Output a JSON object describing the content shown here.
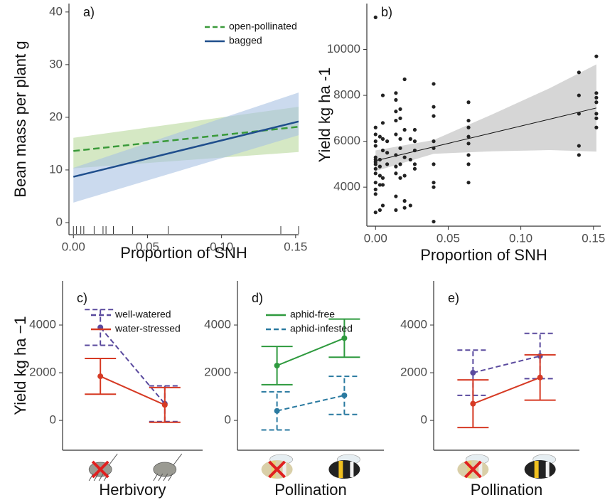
{
  "chart_data": [
    {
      "type": "line",
      "title": "a)",
      "xlabel": "Proportion of SNH",
      "ylabel": "Bean mass per plant g",
      "xlim": [
        -0.003,
        0.152
      ],
      "ylim": [
        -2.3,
        41.6
      ],
      "xticks": [
        {
          "value": 0,
          "label": "0.00"
        },
        0.05,
        {
          "value": 0.1,
          "label": "0.10"
        },
        0.15
      ],
      "yticks": [
        0,
        10,
        20,
        30,
        40
      ],
      "legend": "top-right",
      "series": [
        {
          "name": "open-pollinated",
          "color": "#3a9a3a",
          "dash": true,
          "band_color": "#b9d99c",
          "x": [
            0,
            0.152
          ],
          "values": [
            13.6,
            18.2
          ],
          "lower": [
            10.3,
            13.4
          ],
          "upper": [
            16.1,
            22.0
          ]
        },
        {
          "name": "bagged",
          "color": "#1f4e8c",
          "dash": false,
          "band_color": "#a9c2e2",
          "x": [
            0,
            0.152
          ],
          "values": [
            8.7,
            19.2
          ],
          "lower": [
            3.8,
            16.6
          ],
          "upper": [
            10.4,
            24.7
          ]
        }
      ],
      "rug": [
        0,
        0.002,
        0.005,
        0.007,
        0.014,
        0.02,
        0.022,
        0.027,
        0.04,
        0.064,
        0.14,
        0.152
      ]
    },
    {
      "type": "scatter",
      "title": "b)",
      "xlabel": "Proportion of SNH",
      "ylabel": "Yield kg ha -1",
      "xlim": [
        -0.006,
        0.155
      ],
      "ylim": [
        2300,
        12000
      ],
      "xticks": [
        {
          "value": 0,
          "label": "0.00"
        },
        0.05,
        {
          "value": 0.1,
          "label": "0.10"
        },
        0.15
      ],
      "yticks": [
        4000,
        6000,
        8000,
        10000
      ],
      "color": "#222",
      "x": [
        0,
        0,
        0,
        0,
        0,
        0,
        0,
        0,
        0,
        0,
        0,
        0,
        0,
        0,
        0,
        0.003,
        0.003,
        0.003,
        0.003,
        0.003,
        0.003,
        0.005,
        0.005,
        0.005,
        0.005,
        0.005,
        0.005,
        0.005,
        0.008,
        0.008,
        0.008,
        0.014,
        0.014,
        0.014,
        0.014,
        0.014,
        0.014,
        0.014,
        0.014,
        0.014,
        0.014,
        0.017,
        0.017,
        0.017,
        0.017,
        0.017,
        0.017,
        0.02,
        0.02,
        0.02,
        0.02,
        0.02,
        0.02,
        0.024,
        0.024,
        0.024,
        0.027,
        0.027,
        0.027,
        0.027,
        0.027,
        0.04,
        0.04,
        0.04,
        0.04,
        0.04,
        0.04,
        0.04,
        0.04,
        0.04,
        0.064,
        0.064,
        0.064,
        0.064,
        0.064,
        0.064,
        0.064,
        0.064,
        0.14,
        0.14,
        0.14,
        0.14,
        0.14,
        0.152,
        0.152,
        0.152,
        0.152,
        0.152,
        0.152,
        0.152
      ],
      "values": [
        11400,
        6600,
        6300,
        6000,
        5800,
        5300,
        5200,
        5100,
        5000,
        4800,
        4600,
        4200,
        3900,
        3700,
        2900,
        6200,
        5200,
        4900,
        4500,
        4100,
        3000,
        8000,
        6800,
        6100,
        5600,
        4400,
        4100,
        3200,
        6000,
        5500,
        5000,
        8100,
        7800,
        7300,
        6900,
        6300,
        5400,
        4900,
        4600,
        3600,
        3000,
        7400,
        7000,
        6100,
        5700,
        5000,
        4400,
        8700,
        6500,
        5300,
        4500,
        3400,
        3100,
        6100,
        5200,
        3200,
        6500,
        6000,
        5600,
        5000,
        4800,
        8500,
        7500,
        7100,
        6000,
        5700,
        5000,
        4200,
        4000,
        2500,
        7700,
        6900,
        6600,
        6200,
        5900,
        5400,
        5000,
        4200,
        9000,
        8000,
        7200,
        5800,
        5400,
        9700,
        8100,
        7900,
        7700,
        7200,
        7000,
        6600
      ],
      "fit": {
        "color": "#111",
        "band_color": "#d6d6d6",
        "x": [
          0,
          0.04,
          0.08,
          0.12,
          0.152
        ],
        "values": [
          5150,
          5755,
          6360,
          6965,
          7450
        ],
        "lower": [
          4700,
          5455,
          5560,
          5615,
          5550
        ],
        "upper": [
          5600,
          6055,
          7160,
          8315,
          9350
        ]
      }
    },
    {
      "type": "errorbar",
      "title": "c)",
      "xlabel": "Herbivory",
      "ylabel": "Yield kg ha −1",
      "categories": [
        null,
        null
      ],
      "ylim": [
        -1250,
        5850
      ],
      "yticks": [
        0,
        2000,
        4000
      ],
      "legend": "top-left",
      "series": [
        {
          "name": "well-watered",
          "color": "#5a4a9e",
          "dash": true,
          "values": [
            3900,
            700
          ],
          "errors": [
            750,
            750
          ]
        },
        {
          "name": "water-stressed",
          "color": "#d63a24",
          "dash": false,
          "values": [
            1850,
            650
          ],
          "errors": [
            750,
            730
          ]
        }
      ]
    },
    {
      "type": "errorbar",
      "title": "d)",
      "xlabel": "Pollination",
      "categories": [
        null,
        null
      ],
      "ylim": [
        -1250,
        5850
      ],
      "yticks": [
        0,
        2000,
        4000
      ],
      "legend": "top-left",
      "series": [
        {
          "name": "aphid-free",
          "color": "#2e9a3e",
          "dash": false,
          "values": [
            2300,
            3450
          ],
          "errors": [
            800,
            800
          ]
        },
        {
          "name": "aphid-infested",
          "color": "#2a7aa0",
          "dash": true,
          "values": [
            400,
            1050
          ],
          "errors": [
            800,
            800
          ]
        }
      ]
    },
    {
      "type": "errorbar",
      "title": "e)",
      "xlabel": "Pollination",
      "categories": [
        null,
        null
      ],
      "ylim": [
        -1250,
        5850
      ],
      "yticks": [
        0,
        2000,
        4000
      ],
      "series": [
        {
          "name": "well-watered",
          "color": "#5a4a9e",
          "dash": true,
          "values": [
            2000,
            2700
          ],
          "errors": [
            950,
            950
          ]
        },
        {
          "name": "water-stressed",
          "color": "#d63a24",
          "dash": false,
          "values": [
            700,
            1800
          ],
          "errors": [
            1000,
            950
          ]
        }
      ]
    }
  ]
}
